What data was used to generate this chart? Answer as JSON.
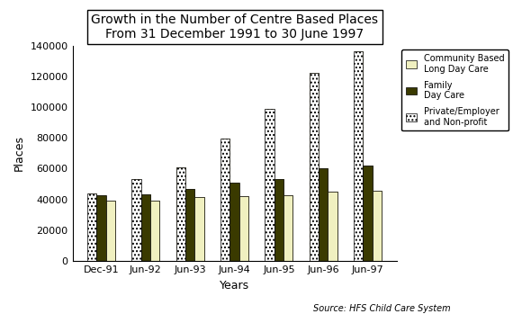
{
  "title": "Growth in the Number of Centre Based Places\nFrom 31 December 1991 to 30 June 1997",
  "xlabel": "Years",
  "ylabel": "Places",
  "source": "Source: HFS Child Care System",
  "categories": [
    "Dec-91",
    "Jun-92",
    "Jun-93",
    "Jun-94",
    "Jun-95",
    "Jun-96",
    "Jun-97"
  ],
  "community_based": [
    39000,
    39500,
    41500,
    42000,
    43000,
    45000,
    45500
  ],
  "family_day_care": [
    42500,
    43500,
    47000,
    51000,
    53000,
    60000,
    62000
  ],
  "private_employer": [
    44000,
    53000,
    61000,
    79500,
    99000,
    122000,
    136000
  ],
  "color_community": "#f0f0c0",
  "color_family": "#3a3a00",
  "ylim": [
    0,
    140000
  ],
  "yticks": [
    0,
    20000,
    40000,
    60000,
    80000,
    100000,
    120000,
    140000
  ],
  "background_color": "#ffffff",
  "title_fontsize": 10,
  "axis_fontsize": 9,
  "tick_fontsize": 8,
  "bar_width": 0.21
}
